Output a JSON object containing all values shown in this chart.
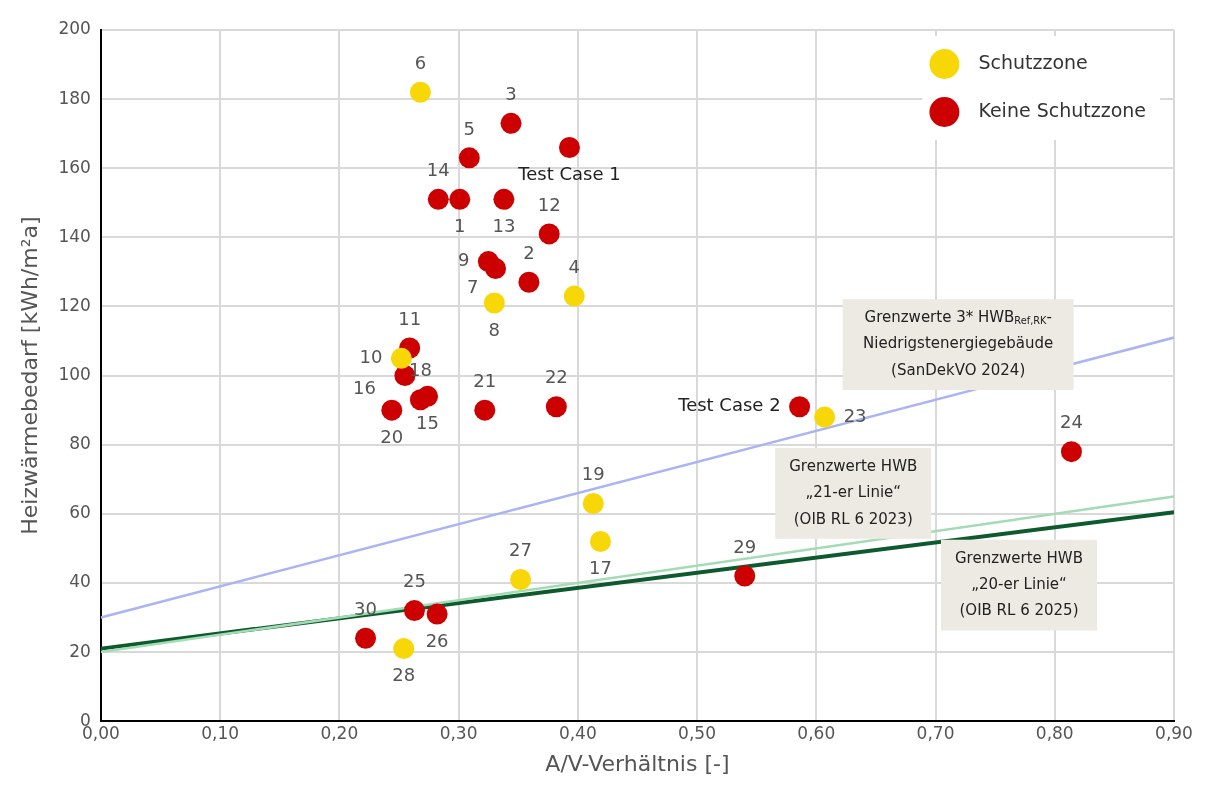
{
  "chart_data": {
    "type": "scatter",
    "xlabel": "A/V-Verhältnis [-]",
    "ylabel": "Heizwärmebedarf [kWh/m²a]",
    "xlim": [
      0,
      0.9
    ],
    "xticks": [
      {
        "value": 0,
        "label": "0,00"
      },
      {
        "value": 0.1,
        "label": "0,10"
      },
      {
        "value": 0.2,
        "label": "0,20"
      },
      {
        "value": 0.3,
        "label": "0,30"
      },
      {
        "value": 0.4,
        "label": "0,40"
      },
      {
        "value": 0.5,
        "label": "0,50"
      },
      {
        "value": 0.6,
        "label": "0,60"
      },
      {
        "value": 0.7,
        "label": "0,70"
      },
      {
        "value": 0.8,
        "label": "0,80"
      },
      {
        "value": 0.9,
        "label": "0,90"
      }
    ],
    "ylim": [
      0,
      200
    ],
    "yticks": [
      0,
      20,
      40,
      60,
      80,
      100,
      120,
      140,
      160,
      180,
      200
    ],
    "grid": true,
    "legend": "top right",
    "series": [
      {
        "type": "line",
        "color": "#aab4f4",
        "x": [
          0,
          0.9
        ],
        "values": [
          30,
          111
        ]
      },
      {
        "type": "line",
        "color": "#a3dbb5",
        "x": [
          0,
          0.9
        ],
        "values": [
          20,
          65
        ]
      },
      {
        "type": "line",
        "color": "#0d5a2f",
        "x": [
          0,
          0.9
        ],
        "values": [
          21,
          60.5
        ]
      },
      {
        "name": "Schutzzone",
        "color": "#f7d708",
        "marker": "circle",
        "x": [
          0.268,
          0.397,
          0.33,
          0.252,
          0.607,
          0.413,
          0.419,
          0.352,
          0.254
        ],
        "values": [
          182,
          123,
          121,
          105,
          88,
          63,
          52,
          41,
          21
        ]
      },
      {
        "name": "Keine Schutzzone",
        "color": "#cc0000",
        "marker": "circle",
        "x": [
          0.344,
          0.393,
          0.309,
          0.283,
          0.301,
          0.338,
          0.376,
          0.325,
          0.331,
          0.359,
          0.259,
          0.255,
          0.274,
          0.268,
          0.244,
          0.322,
          0.382,
          0.586,
          0.814,
          0.54,
          0.222,
          0.263,
          0.282
        ],
        "values": [
          173,
          166,
          163,
          151,
          151,
          151,
          141,
          133,
          131,
          127,
          108,
          100,
          94,
          93,
          90,
          90,
          91,
          91,
          78,
          42,
          24,
          32,
          31
        ]
      }
    ],
    "annotations": [
      {
        "text": "Grenzwerte 3* HWB$_{Ref,RK}$-\nNiedrigstenergiegebäude\n(SanDekVO 2024)",
        "x": 0.719,
        "y": 94.7
      },
      {
        "text": "Grenzwerte HWB\n„21-er Linie“\n(OIB RL 6 2023)",
        "x": 0.631,
        "y": 51.6
      },
      {
        "text": "Grenzwerte HWB\n„20-er Linie“\n(OIB RL 6 2025)",
        "x": 0.77,
        "y": 54.8
      },
      {
        "text": "6",
        "x": 0.268,
        "y": 182
      },
      {
        "text": "3",
        "x": 0.344,
        "y": 173
      },
      {
        "text": "Test Case 1",
        "x": 0.393,
        "y": 166
      },
      {
        "text": "5",
        "x": 0.309,
        "y": 163
      },
      {
        "text": "14",
        "x": 0.283,
        "y": 151
      },
      {
        "text": "1",
        "x": 0.301,
        "y": 151
      },
      {
        "text": "13",
        "x": 0.338,
        "y": 151
      },
      {
        "text": "12",
        "x": 0.376,
        "y": 141
      },
      {
        "text": "9",
        "x": 0.325,
        "y": 133
      },
      {
        "text": "7",
        "x": 0.331,
        "y": 131
      },
      {
        "text": "4",
        "x": 0.397,
        "y": 123
      },
      {
        "text": "2",
        "x": 0.359,
        "y": 127
      },
      {
        "text": "8",
        "x": 0.33,
        "y": 121
      },
      {
        "text": "11",
        "x": 0.259,
        "y": 108
      },
      {
        "text": "10",
        "x": 0.252,
        "y": 105
      },
      {
        "text": "16",
        "x": 0.255,
        "y": 100
      },
      {
        "text": "15",
        "x": 0.274,
        "y": 94
      },
      {
        "text": "18",
        "x": 0.268,
        "y": 93
      },
      {
        "text": "20",
        "x": 0.244,
        "y": 90
      },
      {
        "text": "21",
        "x": 0.322,
        "y": 90
      },
      {
        "text": "22",
        "x": 0.382,
        "y": 91
      },
      {
        "text": "Test Case 2",
        "x": 0.586,
        "y": 91
      },
      {
        "text": "23",
        "x": 0.607,
        "y": 88
      },
      {
        "text": "24",
        "x": 0.814,
        "y": 78
      },
      {
        "text": "19",
        "x": 0.413,
        "y": 63
      },
      {
        "text": "17",
        "x": 0.419,
        "y": 52
      },
      {
        "text": "27",
        "x": 0.352,
        "y": 41
      },
      {
        "text": "29",
        "x": 0.54,
        "y": 42
      },
      {
        "text": "30",
        "x": 0.222,
        "y": 24
      },
      {
        "text": "25",
        "x": 0.263,
        "y": 32
      },
      {
        "text": "26",
        "x": 0.282,
        "y": 31
      },
      {
        "text": "28",
        "x": 0.254,
        "y": 21
      }
    ]
  }
}
